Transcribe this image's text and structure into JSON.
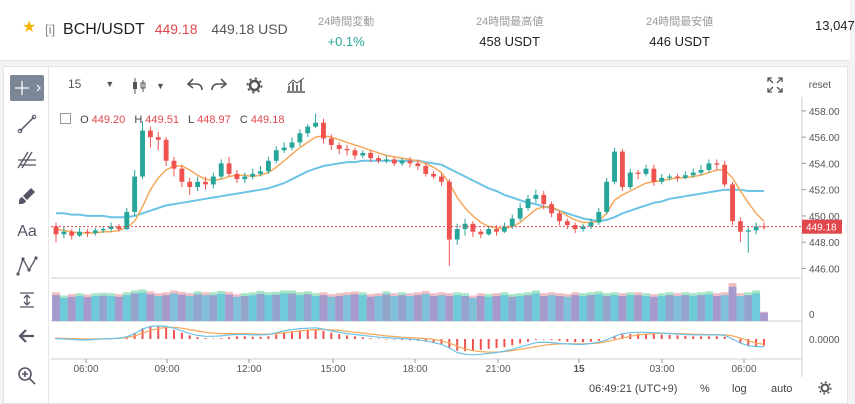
{
  "header": {
    "favorite_icon": "star-icon",
    "exchange_tag": "[i]",
    "symbol": "BCH/USDT",
    "last_price": "449.18",
    "last_price_usd": "449.18 USD",
    "stats": [
      {
        "label": "24時間変動",
        "value": "+0.1%"
      },
      {
        "label": "24時間最高値",
        "value": "458 USDT"
      },
      {
        "label": "24時間最安値",
        "value": "446 USDT"
      },
      {
        "label": "",
        "value": "13,047"
      }
    ]
  },
  "toolbar": {
    "interval": "15",
    "reset_label": "reset",
    "icons": [
      "crosshair-icon",
      "candle-type-icon",
      "undo-icon",
      "redo-icon",
      "settings-icon",
      "indicators-icon",
      "fullscreen-icon"
    ]
  },
  "sidebar_tools": [
    "crosshair-icon",
    "trendline-icon",
    "fib-icon",
    "brush-icon",
    "text-icon",
    "pattern-icon",
    "measure-icon",
    "back-arrow-icon",
    "zoom-icon"
  ],
  "ohlc": {
    "o_label": "O",
    "o": "449.20",
    "h_label": "H",
    "h": "449.51",
    "l_label": "L",
    "l": "448.97",
    "c_label": "C",
    "c": "449.18"
  },
  "footer": {
    "time": "06:49:21",
    "timezone": "(UTC+9)",
    "percent_label": "%",
    "log_label": "log",
    "auto_label": "auto"
  },
  "colors": {
    "up": "#26a69a",
    "down": "#ef5350",
    "ma_fast": "#f5a85a",
    "ma_slow": "#6cc3e6",
    "current_price": "#e0474c"
  },
  "chart_data": [
    {
      "type": "candlestick",
      "x_ticks": [
        "06:00",
        "09:00",
        "12:00",
        "15:00",
        "18:00",
        "21:00",
        "15",
        "03:00",
        "06:00"
      ],
      "y_ticks": [
        446,
        448,
        450,
        452,
        454,
        456,
        458
      ],
      "ylim": [
        445.5,
        458.6
      ],
      "current_price": 449.18,
      "current_price_label": "449.18",
      "candles": [
        [
          449.2,
          448.6,
          449.5,
          448.0
        ],
        [
          448.6,
          448.8,
          449.2,
          448.3
        ],
        [
          448.8,
          448.5,
          449.0,
          448.2
        ],
        [
          448.5,
          448.8,
          449.1,
          448.4
        ],
        [
          448.8,
          448.7,
          449.0,
          448.4
        ],
        [
          448.7,
          448.9,
          449.1,
          448.5
        ],
        [
          448.9,
          449.0,
          449.2,
          448.7
        ],
        [
          449.0,
          449.2,
          449.5,
          448.8
        ],
        [
          449.2,
          449.0,
          449.4,
          448.8
        ],
        [
          449.0,
          450.3,
          450.6,
          448.9
        ],
        [
          450.3,
          453.0,
          453.5,
          450.0
        ],
        [
          453.0,
          456.5,
          457.2,
          452.8
        ],
        [
          456.5,
          456.0,
          456.8,
          455.2
        ],
        [
          456.0,
          455.8,
          456.4,
          455.0
        ],
        [
          455.8,
          454.2,
          456.0,
          453.8
        ],
        [
          454.2,
          453.6,
          454.5,
          453.0
        ],
        [
          453.6,
          452.6,
          453.9,
          452.2
        ],
        [
          452.6,
          452.2,
          452.9,
          451.6
        ],
        [
          452.2,
          452.6,
          453.0,
          451.9
        ],
        [
          452.6,
          452.4,
          453.0,
          452.0
        ],
        [
          452.4,
          453.0,
          453.3,
          452.1
        ],
        [
          453.0,
          454.0,
          454.3,
          452.8
        ],
        [
          454.0,
          453.2,
          454.5,
          453.0
        ],
        [
          453.2,
          452.8,
          453.5,
          452.5
        ],
        [
          452.8,
          453.0,
          453.3,
          452.5
        ],
        [
          453.0,
          453.2,
          453.6,
          452.8
        ],
        [
          453.2,
          453.4,
          453.8,
          453.0
        ],
        [
          453.4,
          454.2,
          454.5,
          453.2
        ],
        [
          454.2,
          455.0,
          455.3,
          454.0
        ],
        [
          455.0,
          455.2,
          455.6,
          454.8
        ],
        [
          455.2,
          455.6,
          456.0,
          455.0
        ],
        [
          455.6,
          456.3,
          456.6,
          455.3
        ],
        [
          456.3,
          456.8,
          457.0,
          456.0
        ],
        [
          456.8,
          457.1,
          457.8,
          456.7
        ],
        [
          457.1,
          455.9,
          457.4,
          455.5
        ],
        [
          455.9,
          455.4,
          456.2,
          455.0
        ],
        [
          455.4,
          455.1,
          455.6,
          454.7
        ],
        [
          455.1,
          455.0,
          455.4,
          454.6
        ],
        [
          455.0,
          454.6,
          455.2,
          454.3
        ],
        [
          454.6,
          454.8,
          455.0,
          454.4
        ],
        [
          454.8,
          454.4,
          455.0,
          454.1
        ],
        [
          454.4,
          454.2,
          454.6,
          454.0
        ],
        [
          454.2,
          454.3,
          454.6,
          454.0
        ],
        [
          454.3,
          454.0,
          454.5,
          453.8
        ],
        [
          454.0,
          454.2,
          454.4,
          453.8
        ],
        [
          454.2,
          454.0,
          454.5,
          453.7
        ],
        [
          454.0,
          453.8,
          454.3,
          453.5
        ],
        [
          453.8,
          453.2,
          454.0,
          453.0
        ],
        [
          453.2,
          453.0,
          453.4,
          452.8
        ],
        [
          453.0,
          452.6,
          453.2,
          452.3
        ],
        [
          452.6,
          448.2,
          452.8,
          446.2
        ],
        [
          448.2,
          449.0,
          449.4,
          447.8
        ],
        [
          449.0,
          449.4,
          449.8,
          448.5
        ],
        [
          449.4,
          448.8,
          449.6,
          448.4
        ],
        [
          448.8,
          448.6,
          449.0,
          448.3
        ],
        [
          448.6,
          449.0,
          449.2,
          448.5
        ],
        [
          449.0,
          448.8,
          449.3,
          448.5
        ],
        [
          448.8,
          449.2,
          449.5,
          448.7
        ],
        [
          449.2,
          449.8,
          450.1,
          449.0
        ],
        [
          449.8,
          450.6,
          451.0,
          449.6
        ],
        [
          450.6,
          451.3,
          451.6,
          450.4
        ],
        [
          451.3,
          451.6,
          452.0,
          451.0
        ],
        [
          451.6,
          450.9,
          451.9,
          450.5
        ],
        [
          450.9,
          450.2,
          451.1,
          449.9
        ],
        [
          450.2,
          449.6,
          450.4,
          449.3
        ],
        [
          449.6,
          449.3,
          449.8,
          449.0
        ],
        [
          449.3,
          449.0,
          449.5,
          448.7
        ],
        [
          449.0,
          449.2,
          449.4,
          448.8
        ],
        [
          449.2,
          449.5,
          449.8,
          449.0
        ],
        [
          449.5,
          450.3,
          450.6,
          449.3
        ],
        [
          450.3,
          452.6,
          452.9,
          450.1
        ],
        [
          452.6,
          454.9,
          455.2,
          452.4
        ],
        [
          454.9,
          452.2,
          455.1,
          451.9
        ],
        [
          452.2,
          453.3,
          453.6,
          452.0
        ],
        [
          453.3,
          453.2,
          453.5,
          452.8
        ],
        [
          453.2,
          453.6,
          453.9,
          453.0
        ],
        [
          453.6,
          452.6,
          453.9,
          452.3
        ],
        [
          452.6,
          452.9,
          453.2,
          452.4
        ],
        [
          452.9,
          453.0,
          453.2,
          452.7
        ],
        [
          453.0,
          452.9,
          453.2,
          452.6
        ],
        [
          452.9,
          453.1,
          453.4,
          452.8
        ],
        [
          453.1,
          453.3,
          453.6,
          452.9
        ],
        [
          453.3,
          453.5,
          453.9,
          453.1
        ],
        [
          453.5,
          454.0,
          454.3,
          453.3
        ],
        [
          454.0,
          453.9,
          454.3,
          453.5
        ],
        [
          453.9,
          452.4,
          454.2,
          452.2
        ],
        [
          452.4,
          449.6,
          452.6,
          449.3
        ],
        [
          449.6,
          448.8,
          449.9,
          448.0
        ],
        [
          448.8,
          448.9,
          449.2,
          447.2
        ],
        [
          448.9,
          449.2,
          449.5,
          448.6
        ],
        [
          449.2,
          449.18,
          449.51,
          448.97
        ]
      ],
      "ma_fast": [
        449.0,
        448.9,
        448.8,
        448.7,
        448.7,
        448.7,
        448.8,
        448.8,
        448.9,
        449.1,
        449.6,
        450.7,
        452.0,
        452.9,
        453.5,
        453.8,
        453.8,
        453.5,
        453.1,
        452.8,
        452.7,
        452.8,
        453.0,
        453.1,
        453.1,
        453.0,
        453.1,
        453.3,
        453.7,
        454.2,
        454.7,
        455.2,
        455.6,
        456.0,
        456.1,
        456.0,
        455.8,
        455.6,
        455.4,
        455.2,
        455.0,
        454.8,
        454.6,
        454.5,
        454.4,
        454.3,
        454.2,
        454.0,
        453.7,
        453.3,
        452.5,
        451.4,
        450.6,
        450.0,
        449.5,
        449.2,
        449.1,
        449.0,
        449.2,
        449.5,
        450.0,
        450.5,
        450.7,
        450.7,
        450.4,
        450.0,
        449.7,
        449.5,
        449.5,
        449.6,
        450.2,
        451.2,
        451.6,
        451.9,
        452.2,
        452.5,
        452.6,
        452.7,
        452.8,
        452.9,
        452.9,
        453.0,
        453.1,
        453.3,
        453.5,
        453.5,
        452.9,
        451.9,
        451.0,
        450.2,
        449.6
      ],
      "ma_slow": [
        450.2,
        450.2,
        450.1,
        450.1,
        450.0,
        450.0,
        450.0,
        449.9,
        449.9,
        449.9,
        450.0,
        450.2,
        450.4,
        450.6,
        450.8,
        450.9,
        451.0,
        451.1,
        451.2,
        451.3,
        451.4,
        451.5,
        451.6,
        451.7,
        451.8,
        451.9,
        452.0,
        452.1,
        452.3,
        452.5,
        452.8,
        453.1,
        453.4,
        453.6,
        453.8,
        453.9,
        454.0,
        454.1,
        454.1,
        454.2,
        454.2,
        454.2,
        454.2,
        454.2,
        454.2,
        454.2,
        454.2,
        454.1,
        454.0,
        453.9,
        453.6,
        453.3,
        453.0,
        452.7,
        452.4,
        452.1,
        451.9,
        451.6,
        451.4,
        451.2,
        451.0,
        450.9,
        450.7,
        450.6,
        450.4,
        450.2,
        450.0,
        449.8,
        449.7,
        449.6,
        449.7,
        449.9,
        450.2,
        450.4,
        450.6,
        450.8,
        451.0,
        451.1,
        451.3,
        451.4,
        451.5,
        451.6,
        451.7,
        451.8,
        451.9,
        452.0,
        452.0,
        452.0,
        451.9,
        451.9,
        451.9
      ],
      "volume": [
        0.62,
        0.55,
        0.58,
        0.6,
        0.57,
        0.6,
        0.61,
        0.6,
        0.58,
        0.62,
        0.66,
        0.68,
        0.64,
        0.6,
        0.62,
        0.66,
        0.63,
        0.6,
        0.64,
        0.62,
        0.62,
        0.65,
        0.63,
        0.58,
        0.6,
        0.62,
        0.65,
        0.62,
        0.63,
        0.66,
        0.66,
        0.62,
        0.64,
        0.6,
        0.62,
        0.58,
        0.6,
        0.62,
        0.64,
        0.62,
        0.58,
        0.6,
        0.64,
        0.6,
        0.62,
        0.6,
        0.62,
        0.65,
        0.6,
        0.62,
        0.6,
        0.62,
        0.6,
        0.55,
        0.6,
        0.58,
        0.6,
        0.62,
        0.58,
        0.6,
        0.62,
        0.66,
        0.6,
        0.62,
        0.6,
        0.58,
        0.62,
        0.6,
        0.62,
        0.64,
        0.6,
        0.62,
        0.6,
        0.62,
        0.62,
        0.6,
        0.58,
        0.6,
        0.62,
        0.6,
        0.62,
        0.6,
        0.62,
        0.64,
        0.6,
        0.62,
        0.82,
        0.6,
        0.62,
        0.66,
        0.2
      ],
      "volume_ticks": [
        "0"
      ]
    },
    {
      "type": "line",
      "name": "oscillator",
      "y_ticks": [
        "0.0000"
      ],
      "hist": [
        0.1,
        0.05,
        0.0,
        -0.05,
        -0.05,
        0.0,
        0.05,
        0.1,
        0.15,
        0.3,
        0.7,
        1.2,
        1.4,
        1.4,
        1.3,
        1.0,
        0.7,
        0.4,
        0.2,
        0.1,
        0.05,
        0.1,
        0.2,
        0.3,
        0.3,
        0.25,
        0.25,
        0.3,
        0.5,
        0.7,
        0.85,
        0.95,
        1.0,
        1.05,
        0.9,
        0.7,
        0.55,
        0.4,
        0.3,
        0.2,
        0.1,
        0.05,
        0.0,
        -0.05,
        -0.1,
        -0.15,
        -0.2,
        -0.3,
        -0.45,
        -0.6,
        -1.0,
        -1.3,
        -1.35,
        -1.3,
        -1.2,
        -1.1,
        -1.0,
        -0.9,
        -0.7,
        -0.5,
        -0.3,
        -0.1,
        -0.05,
        -0.1,
        -0.2,
        -0.3,
        -0.35,
        -0.35,
        -0.3,
        -0.2,
        0.0,
        0.3,
        0.5,
        0.55,
        0.6,
        0.6,
        0.55,
        0.5,
        0.45,
        0.4,
        0.35,
        0.3,
        0.3,
        0.3,
        0.3,
        0.25,
        -0.1,
        -0.5,
        -0.75,
        -0.8,
        -0.75
      ],
      "line_a": [
        0.05,
        0.0,
        -0.05,
        -0.1,
        -0.1,
        -0.05,
        0.0,
        0.05,
        0.1,
        0.25,
        0.6,
        1.1,
        1.4,
        1.45,
        1.4,
        1.2,
        0.9,
        0.6,
        0.4,
        0.3,
        0.3,
        0.35,
        0.45,
        0.5,
        0.5,
        0.45,
        0.45,
        0.5,
        0.7,
        0.9,
        1.05,
        1.15,
        1.2,
        1.25,
        1.1,
        0.9,
        0.75,
        0.6,
        0.5,
        0.4,
        0.3,
        0.2,
        0.15,
        0.1,
        0.05,
        0.0,
        -0.1,
        -0.2,
        -0.4,
        -0.6,
        -1.0,
        -1.5,
        -1.7,
        -1.75,
        -1.7,
        -1.6,
        -1.5,
        -1.35,
        -1.15,
        -0.9,
        -0.65,
        -0.4,
        -0.35,
        -0.4,
        -0.5,
        -0.55,
        -0.6,
        -0.6,
        -0.5,
        -0.35,
        -0.1,
        0.3,
        0.6,
        0.7,
        0.75,
        0.75,
        0.7,
        0.65,
        0.6,
        0.55,
        0.5,
        0.45,
        0.45,
        0.45,
        0.45,
        0.4,
        0.0,
        -0.45,
        -0.75,
        -0.85,
        -0.85
      ],
      "line_b": [
        0.1,
        0.08,
        0.05,
        0.02,
        0.0,
        0.0,
        0.02,
        0.05,
        0.08,
        0.15,
        0.35,
        0.65,
        0.95,
        1.15,
        1.3,
        1.3,
        1.2,
        1.05,
        0.9,
        0.75,
        0.65,
        0.6,
        0.6,
        0.6,
        0.6,
        0.58,
        0.55,
        0.55,
        0.6,
        0.7,
        0.8,
        0.9,
        1.0,
        1.05,
        1.05,
        1.0,
        0.95,
        0.85,
        0.75,
        0.65,
        0.55,
        0.45,
        0.35,
        0.28,
        0.2,
        0.15,
        0.1,
        0.05,
        -0.05,
        -0.2,
        -0.45,
        -0.8,
        -1.1,
        -1.3,
        -1.4,
        -1.45,
        -1.45,
        -1.4,
        -1.3,
        -1.15,
        -1.0,
        -0.85,
        -0.7,
        -0.6,
        -0.55,
        -0.55,
        -0.55,
        -0.55,
        -0.5,
        -0.45,
        -0.3,
        -0.1,
        0.1,
        0.3,
        0.45,
        0.55,
        0.6,
        0.62,
        0.62,
        0.6,
        0.58,
        0.55,
        0.52,
        0.5,
        0.48,
        0.46,
        0.35,
        0.1,
        -0.2,
        -0.45,
        -0.6
      ]
    }
  ]
}
